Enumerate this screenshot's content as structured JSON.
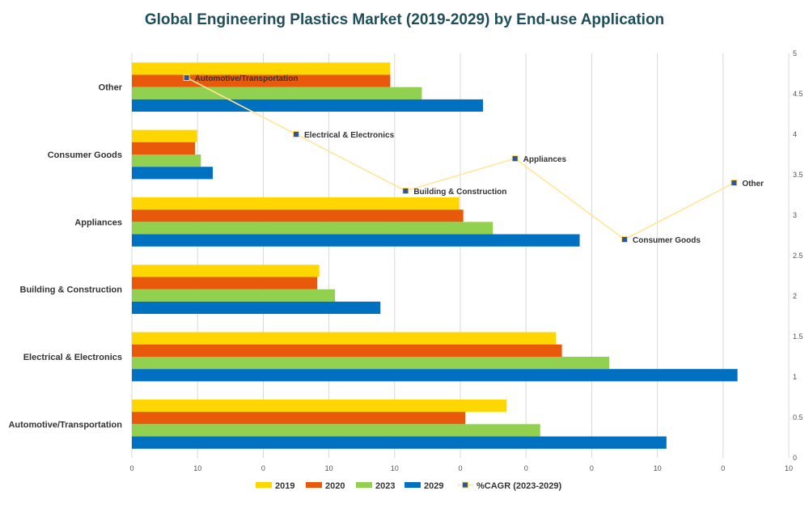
{
  "chart_data": {
    "type": "bar",
    "orientation": "horizontal",
    "title": "Global Engineering Plastics Market (2019-2029) by End-use Application",
    "categories": [
      "Automotive/Transportation",
      "Electrical & Electronics",
      "Building & Construction",
      "Appliances",
      "Consumer Goods",
      "Other"
    ],
    "series": [
      {
        "name": "2019",
        "color": "#FFD700",
        "values": [
          19.0,
          21.5,
          9.5,
          16.6,
          3.3,
          13.1
        ]
      },
      {
        "name": "2020",
        "color": "#E8590C",
        "values": [
          16.9,
          21.8,
          9.4,
          16.8,
          3.2,
          13.1
        ]
      },
      {
        "name": "2023",
        "color": "#92D050",
        "values": [
          20.7,
          24.2,
          10.3,
          18.3,
          3.5,
          14.7
        ]
      },
      {
        "name": "2029",
        "color": "#0070C0",
        "values": [
          27.1,
          30.7,
          12.6,
          22.7,
          4.1,
          17.8
        ]
      }
    ],
    "x_ticks": [
      "0",
      "10",
      "0",
      "10",
      "10",
      "0",
      "0",
      "0",
      "10",
      "0",
      "10"
    ],
    "xlim": [
      0,
      33.3
    ],
    "line_series": {
      "name": "%CAGR (2023-2029)",
      "color": "#FFE699",
      "marker_color": "#2F5597",
      "points": [
        {
          "label": "Automotive/Transportation",
          "value": 4.7
        },
        {
          "label": "Electrical & Electronics",
          "value": 4.0
        },
        {
          "label": "Building & Construction",
          "value": 3.3
        },
        {
          "label": "Appliances",
          "value": 3.7
        },
        {
          "label": "Consumer Goods",
          "value": 2.7
        },
        {
          "label": "Other",
          "value": 3.4
        }
      ]
    },
    "y2_ticks": [
      "0",
      "0.5",
      "1",
      "1.5",
      "2",
      "2.5",
      "3",
      "3.5",
      "4",
      "4.5",
      "5"
    ],
    "y2lim": [
      0,
      5
    ],
    "legend": [
      "2019",
      "2020",
      "2023",
      "2029",
      "%CAGR (2023-2029)"
    ],
    "legend_position": "bottom",
    "grid": true
  }
}
